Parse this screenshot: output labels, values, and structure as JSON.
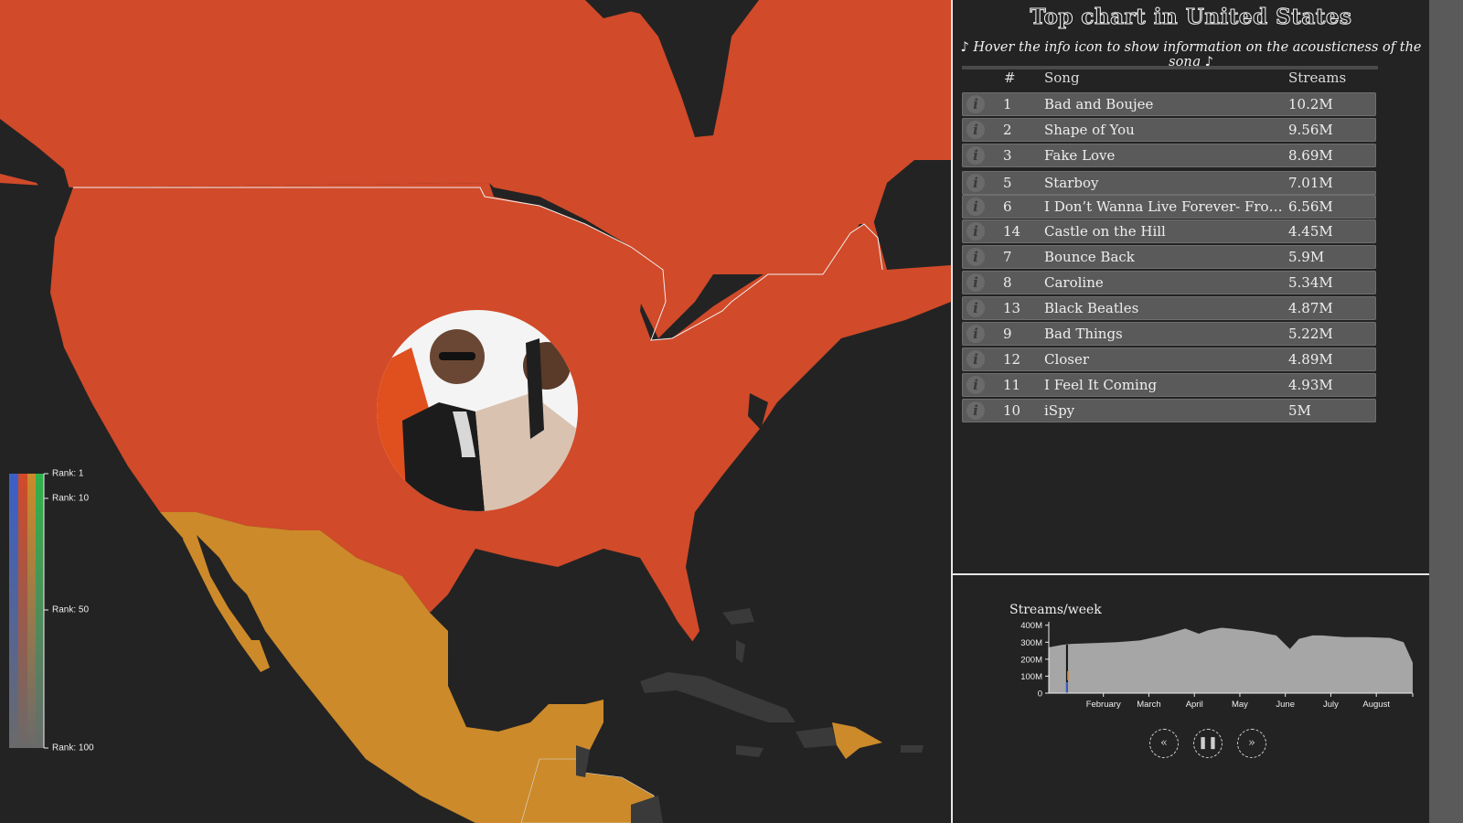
{
  "map": {
    "colors": {
      "us": "#d14a29",
      "mexico": "#cc8a2a",
      "other": "#202020",
      "neighbors": "#3a3a3a",
      "water": "#232323",
      "border": "#eeeeee"
    },
    "avatar": "artist-photo"
  },
  "legend": {
    "labels": [
      "Rank: 1",
      "Rank: 10",
      "Rank: 50",
      "Rank: 100"
    ],
    "ranks": [
      1,
      10,
      50,
      100
    ],
    "colors": [
      "#3b5fc8",
      "#d14a29",
      "#cc8a2a",
      "#2fb24a"
    ]
  },
  "panel": {
    "title": "Top chart in United States",
    "subtitle": "♪ Hover the info icon to show information on the acousticness of the song ♪",
    "headers": {
      "rank": "#",
      "song": "Song",
      "streams": "Streams"
    },
    "info_icon": "i",
    "rows": [
      {
        "rank": "1",
        "song": "Bad and Boujee",
        "streams": "10.2M"
      },
      {
        "rank": "2",
        "song": "Shape of You",
        "streams": "9.56M"
      },
      {
        "rank": "3",
        "song": "Fake Love",
        "streams": "8.69M"
      },
      {
        "rank": "5",
        "song": "Starboy",
        "streams": "7.01M"
      },
      {
        "rank": "6",
        "song": "I Don’t Wanna Live Forever- From \"Fifty Shades Darker\"",
        "streams": "6.56M"
      },
      {
        "rank": "14",
        "song": "Castle on the Hill",
        "streams": "4.45M"
      },
      {
        "rank": "7",
        "song": "Bounce Back",
        "streams": "5.9M"
      },
      {
        "rank": "8",
        "song": "Caroline",
        "streams": "5.34M"
      },
      {
        "rank": "13",
        "song": "Black Beatles",
        "streams": "4.87M"
      },
      {
        "rank": "9",
        "song": "Bad Things",
        "streams": "5.22M"
      },
      {
        "rank": "12",
        "song": "Closer",
        "streams": "4.89M"
      },
      {
        "rank": "11",
        "song": "I Feel It Coming",
        "streams": "4.93M"
      },
      {
        "rank": "10",
        "song": "iSpy",
        "streams": "5M"
      }
    ]
  },
  "streams_chart": {
    "title": "Streams/week",
    "controls": {
      "rewind": "«",
      "pause": "❚❚",
      "forward": "»"
    },
    "chart_data": {
      "type": "area",
      "ylabel": "",
      "yticks": [
        "0",
        "100M",
        "200M",
        "300M",
        "400M"
      ],
      "ylim": [
        0,
        420
      ],
      "xticks": [
        "February",
        "March",
        "April",
        "May",
        "June",
        "July",
        "August"
      ],
      "xtick_positions": [
        1.2,
        2.2,
        3.2,
        4.2,
        5.2,
        6.2,
        7.2
      ],
      "xlim": [
        0,
        8
      ],
      "x": [
        0.0,
        0.3,
        0.5,
        1.0,
        1.5,
        2.0,
        2.5,
        3.0,
        3.3,
        3.5,
        3.8,
        4.0,
        4.3,
        4.5,
        5.0,
        5.3,
        5.5,
        5.8,
        6.0,
        6.5,
        7.0,
        7.5,
        7.8,
        8.0
      ],
      "values": [
        270,
        285,
        290,
        295,
        300,
        310,
        340,
        380,
        350,
        370,
        385,
        380,
        370,
        365,
        340,
        260,
        320,
        340,
        340,
        330,
        330,
        325,
        300,
        180
      ],
      "cursor_x": 0.5,
      "colors": {
        "fill": "#a6a6a6",
        "cursor": "#111111",
        "accent": "#d88a2a",
        "blue": "#3b5fc8"
      }
    }
  }
}
